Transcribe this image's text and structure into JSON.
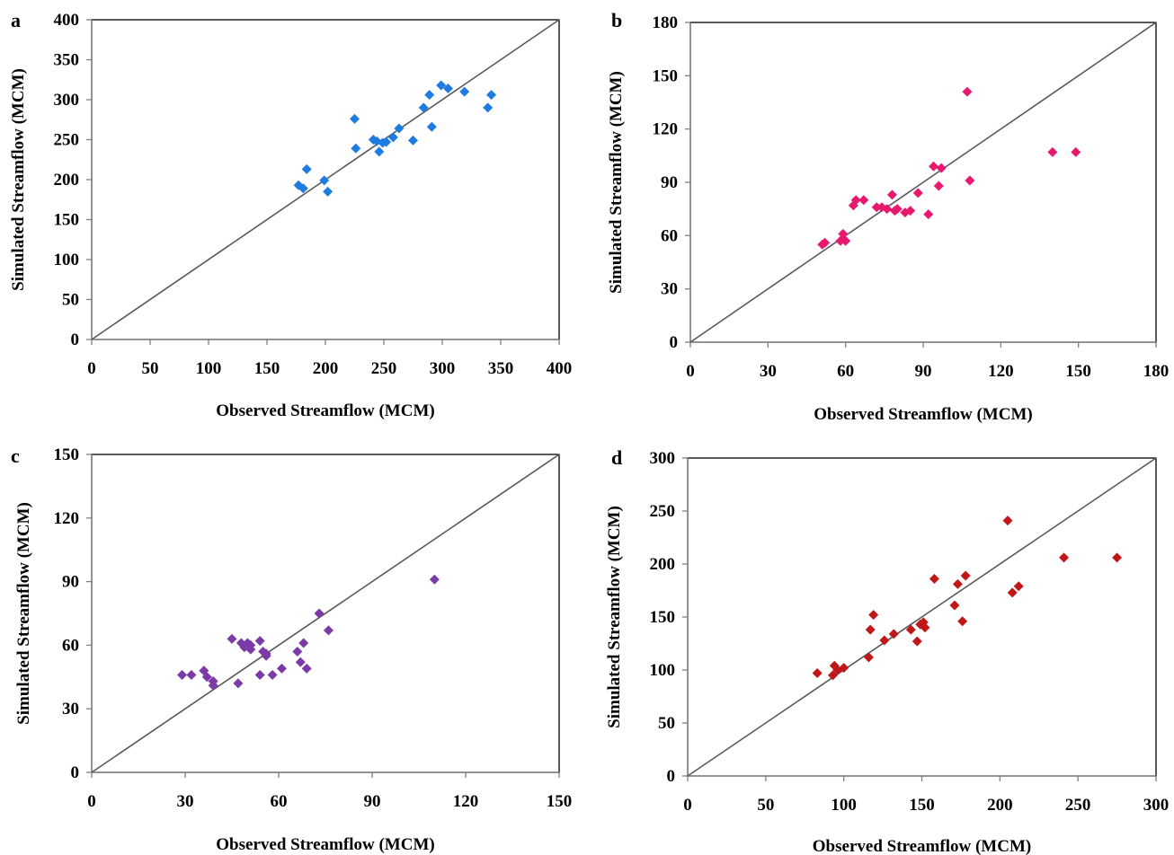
{
  "chart_data": [
    {
      "type": "scatter",
      "panel": "a",
      "xlabel": "Observed Streamflow (MCM)",
      "ylabel": "Simulated Streamflow (MCM)",
      "xlim": [
        0,
        400
      ],
      "ylim": [
        0,
        400
      ],
      "xticks": [
        0,
        50,
        100,
        150,
        200,
        250,
        300,
        350,
        400
      ],
      "yticks": [
        0,
        50,
        100,
        150,
        200,
        250,
        300,
        350,
        400
      ],
      "grid": false,
      "reference_line": "1:1",
      "color": "#1e7be0",
      "points": [
        [
          177,
          193
        ],
        [
          181,
          189
        ],
        [
          184,
          213
        ],
        [
          199,
          199
        ],
        [
          202,
          185
        ],
        [
          225,
          276
        ],
        [
          226,
          239
        ],
        [
          241,
          250
        ],
        [
          244,
          248
        ],
        [
          246,
          235
        ],
        [
          249,
          246
        ],
        [
          252,
          247
        ],
        [
          258,
          253
        ],
        [
          263,
          264
        ],
        [
          275,
          249
        ],
        [
          284,
          290
        ],
        [
          289,
          306
        ],
        [
          291,
          266
        ],
        [
          299,
          318
        ],
        [
          305,
          314
        ],
        [
          319,
          310
        ],
        [
          339,
          290
        ],
        [
          342,
          306
        ]
      ]
    },
    {
      "type": "scatter",
      "panel": "b",
      "xlabel": "Observed Streamflow (MCM)",
      "ylabel": "Simulated Streamflow (MCM)",
      "xlim": [
        0,
        180
      ],
      "ylim": [
        0,
        180
      ],
      "xticks": [
        0,
        30,
        60,
        90,
        120,
        150,
        180
      ],
      "yticks": [
        0,
        30,
        60,
        90,
        120,
        150,
        180
      ],
      "grid": false,
      "reference_line": "1:1",
      "color": "#e8186e",
      "points": [
        [
          51,
          55
        ],
        [
          52,
          56
        ],
        [
          58,
          57
        ],
        [
          59,
          61
        ],
        [
          60,
          57
        ],
        [
          63,
          77
        ],
        [
          64,
          80
        ],
        [
          67,
          80
        ],
        [
          72,
          76
        ],
        [
          74,
          76
        ],
        [
          76,
          75
        ],
        [
          78,
          83
        ],
        [
          79,
          74
        ],
        [
          80,
          75
        ],
        [
          83,
          73
        ],
        [
          85,
          74
        ],
        [
          88,
          84
        ],
        [
          92,
          72
        ],
        [
          94,
          99
        ],
        [
          96,
          88
        ],
        [
          97,
          98
        ],
        [
          107,
          141
        ],
        [
          108,
          91
        ],
        [
          140,
          107
        ],
        [
          149,
          107
        ]
      ]
    },
    {
      "type": "scatter",
      "panel": "c",
      "xlabel": "Observed Streamflow (MCM)",
      "ylabel": "Simulated Streamflow (MCM)",
      "xlim": [
        0,
        150
      ],
      "ylim": [
        0,
        150
      ],
      "xticks": [
        0,
        30,
        60,
        90,
        120,
        150
      ],
      "yticks": [
        0,
        30,
        60,
        90,
        120,
        150
      ],
      "grid": false,
      "reference_line": "1:1",
      "color": "#7b3aa5",
      "points": [
        [
          29,
          46
        ],
        [
          32,
          46
        ],
        [
          36,
          48
        ],
        [
          37,
          45
        ],
        [
          39,
          43
        ],
        [
          39,
          41
        ],
        [
          45,
          63
        ],
        [
          47,
          42
        ],
        [
          48,
          61
        ],
        [
          49,
          59
        ],
        [
          50,
          61
        ],
        [
          51,
          60
        ],
        [
          51,
          58
        ],
        [
          54,
          62
        ],
        [
          54,
          46
        ],
        [
          55,
          57
        ],
        [
          56,
          55
        ],
        [
          56,
          56
        ],
        [
          58,
          46
        ],
        [
          61,
          49
        ],
        [
          66,
          57
        ],
        [
          67,
          52
        ],
        [
          68,
          61
        ],
        [
          69,
          49
        ],
        [
          73,
          75
        ],
        [
          76,
          67
        ],
        [
          110,
          91
        ]
      ]
    },
    {
      "type": "scatter",
      "panel": "d",
      "xlabel": "Observed Streamflow (MCM)",
      "ylabel": "Simulated Streamflow (MCM)",
      "xlim": [
        0,
        300
      ],
      "ylim": [
        0,
        300
      ],
      "xticks": [
        0,
        50,
        100,
        150,
        200,
        250,
        300
      ],
      "yticks": [
        0,
        50,
        100,
        150,
        200,
        250,
        300
      ],
      "grid": false,
      "reference_line": "1:1",
      "color": "#c01818",
      "points": [
        [
          83,
          97
        ],
        [
          93,
          95
        ],
        [
          94,
          104
        ],
        [
          96,
          100
        ],
        [
          100,
          102
        ],
        [
          116,
          112
        ],
        [
          117,
          138
        ],
        [
          119,
          152
        ],
        [
          126,
          128
        ],
        [
          132,
          134
        ],
        [
          143,
          138
        ],
        [
          147,
          127
        ],
        [
          149,
          143
        ],
        [
          151,
          145
        ],
        [
          152,
          140
        ],
        [
          158,
          186
        ],
        [
          171,
          161
        ],
        [
          173,
          181
        ],
        [
          176,
          146
        ],
        [
          178,
          189
        ],
        [
          205,
          241
        ],
        [
          208,
          173
        ],
        [
          212,
          179
        ],
        [
          241,
          206
        ],
        [
          275,
          206
        ]
      ]
    }
  ]
}
